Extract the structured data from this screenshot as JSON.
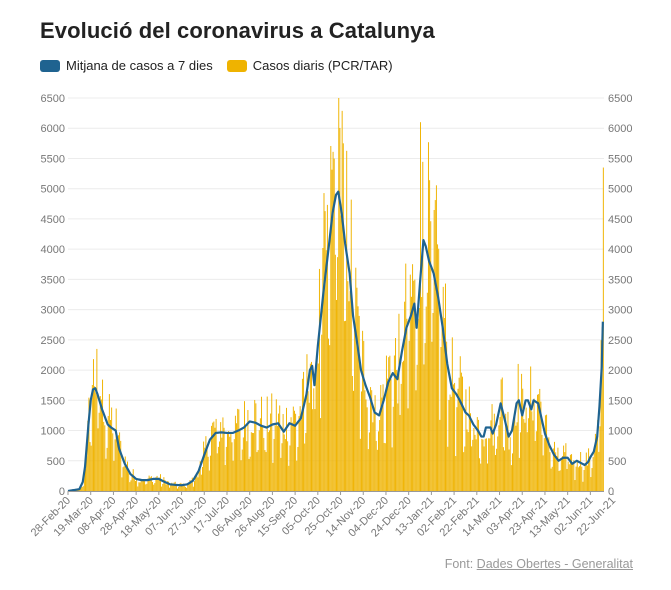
{
  "title": "Evolució del coronavirus a Catalunya",
  "legend": [
    {
      "label": "Mitjana de casos a 7 dies",
      "color": "#1f6390"
    },
    {
      "label": "Casos diaris (PCR/TAR)",
      "color": "#efb300"
    }
  ],
  "footer": {
    "prefix": "Font:",
    "link": "Dades Obertes - Generalitat"
  },
  "chart_data": {
    "type": "bar+line",
    "title": "Evolució del coronavirus a Catalunya",
    "y_ticks": [
      0,
      500,
      1000,
      1500,
      2000,
      2500,
      3000,
      3500,
      4000,
      4500,
      5000,
      5500,
      6000,
      6500
    ],
    "ylim": [
      0,
      6500
    ],
    "x_ticks": [
      "28-Feb-20",
      "19-Mar-20",
      "08-Apr-20",
      "28-Apr-20",
      "18-May-20",
      "07-Jun-20",
      "27-Jun-20",
      "17-Jul-20",
      "06-Aug-20",
      "26-Aug-20",
      "15-Sep-20",
      "05-Oct-20",
      "25-Oct-20",
      "14-Nov-20",
      "04-Dec-20",
      "24-Dec-20",
      "13-Jan-21",
      "02-Feb-21",
      "22-Feb-21",
      "14-Mar-21",
      "03-Apr-21",
      "23-Apr-21",
      "13-May-21",
      "02-Jun-21",
      "22-Jun-21"
    ],
    "x_tick_days": [
      0,
      20,
      40,
      60,
      80,
      100,
      120,
      140,
      160,
      180,
      200,
      220,
      240,
      260,
      280,
      300,
      320,
      340,
      360,
      380,
      400,
      420,
      440,
      460,
      480
    ],
    "series_line": {
      "name": "Mitjana de casos a 7 dies",
      "anchors": [
        [
          0,
          0
        ],
        [
          10,
          30
        ],
        [
          13,
          150
        ],
        [
          15,
          400
        ],
        [
          18,
          1100
        ],
        [
          20,
          1500
        ],
        [
          22,
          1680
        ],
        [
          24,
          1700
        ],
        [
          26,
          1600
        ],
        [
          30,
          1350
        ],
        [
          35,
          1100
        ],
        [
          38,
          1050
        ],
        [
          42,
          1000
        ],
        [
          45,
          700
        ],
        [
          50,
          450
        ],
        [
          55,
          280
        ],
        [
          60,
          200
        ],
        [
          65,
          180
        ],
        [
          70,
          180
        ],
        [
          75,
          200
        ],
        [
          80,
          200
        ],
        [
          85,
          150
        ],
        [
          90,
          110
        ],
        [
          95,
          100
        ],
        [
          100,
          95
        ],
        [
          105,
          110
        ],
        [
          110,
          170
        ],
        [
          115,
          330
        ],
        [
          120,
          600
        ],
        [
          125,
          850
        ],
        [
          130,
          960
        ],
        [
          135,
          970
        ],
        [
          140,
          960
        ],
        [
          145,
          960
        ],
        [
          150,
          1000
        ],
        [
          155,
          1050
        ],
        [
          160,
          1150
        ],
        [
          165,
          1130
        ],
        [
          170,
          1080
        ],
        [
          175,
          1050
        ],
        [
          180,
          1100
        ],
        [
          185,
          1120
        ],
        [
          190,
          980
        ],
        [
          195,
          1120
        ],
        [
          200,
          1080
        ],
        [
          205,
          1200
        ],
        [
          210,
          1600
        ],
        [
          213,
          2000
        ],
        [
          215,
          2070
        ],
        [
          217,
          1750
        ],
        [
          220,
          2400
        ],
        [
          225,
          3300
        ],
        [
          230,
          4100
        ],
        [
          233,
          4600
        ],
        [
          236,
          4900
        ],
        [
          238,
          4950
        ],
        [
          241,
          4600
        ],
        [
          244,
          4100
        ],
        [
          248,
          3600
        ],
        [
          251,
          2900
        ],
        [
          255,
          2400
        ],
        [
          258,
          2000
        ],
        [
          262,
          1750
        ],
        [
          266,
          1550
        ],
        [
          270,
          1300
        ],
        [
          274,
          1250
        ],
        [
          278,
          1500
        ],
        [
          282,
          1800
        ],
        [
          286,
          1950
        ],
        [
          290,
          1850
        ],
        [
          294,
          2300
        ],
        [
          298,
          2700
        ],
        [
          302,
          2900
        ],
        [
          305,
          3100
        ],
        [
          307,
          2700
        ],
        [
          310,
          3450
        ],
        [
          313,
          4150
        ],
        [
          315,
          4050
        ],
        [
          318,
          3800
        ],
        [
          322,
          3600
        ],
        [
          326,
          3200
        ],
        [
          330,
          2700
        ],
        [
          334,
          2100
        ],
        [
          338,
          1700
        ],
        [
          342,
          1600
        ],
        [
          345,
          1500
        ],
        [
          350,
          1300
        ],
        [
          353,
          1250
        ],
        [
          357,
          1100
        ],
        [
          361,
          1000
        ],
        [
          364,
          900
        ],
        [
          366,
          900
        ],
        [
          368,
          1050
        ],
        [
          372,
          1050
        ],
        [
          374,
          950
        ],
        [
          377,
          1100
        ],
        [
          381,
          1450
        ],
        [
          385,
          1150
        ],
        [
          388,
          900
        ],
        [
          391,
          1000
        ],
        [
          395,
          1450
        ],
        [
          397,
          1500
        ],
        [
          400,
          1250
        ],
        [
          403,
          1500
        ],
        [
          405,
          1500
        ],
        [
          408,
          1350
        ],
        [
          410,
          1500
        ],
        [
          414,
          1450
        ],
        [
          417,
          1200
        ],
        [
          420,
          950
        ],
        [
          424,
          750
        ],
        [
          428,
          600
        ],
        [
          432,
          500
        ],
        [
          436,
          550
        ],
        [
          440,
          550
        ],
        [
          444,
          450
        ],
        [
          448,
          500
        ],
        [
          452,
          460
        ],
        [
          455,
          430
        ],
        [
          458,
          480
        ],
        [
          460,
          560
        ],
        [
          463,
          650
        ],
        [
          466,
          900
        ],
        [
          468,
          1400
        ],
        [
          470,
          2050
        ],
        [
          471,
          2800
        ]
      ],
      "color": "#1f6390"
    },
    "series_bars": {
      "name": "Casos diaris (PCR/TAR)",
      "description": "Daily case bars, approx. 472 days from 28-Feb-20 to mid Jun-21, scattered around the 7-day mean with weekend dips; notable peaks ~2350 (Mar-20), ~6500 (late Oct-20), ~6100 (early Jan-21), ~5350 (latest).",
      "peaks": [
        [
          25,
          2350
        ],
        [
          238,
          6500
        ],
        [
          310,
          6100
        ],
        [
          471,
          5350
        ]
      ],
      "color": "#efb300"
    }
  }
}
